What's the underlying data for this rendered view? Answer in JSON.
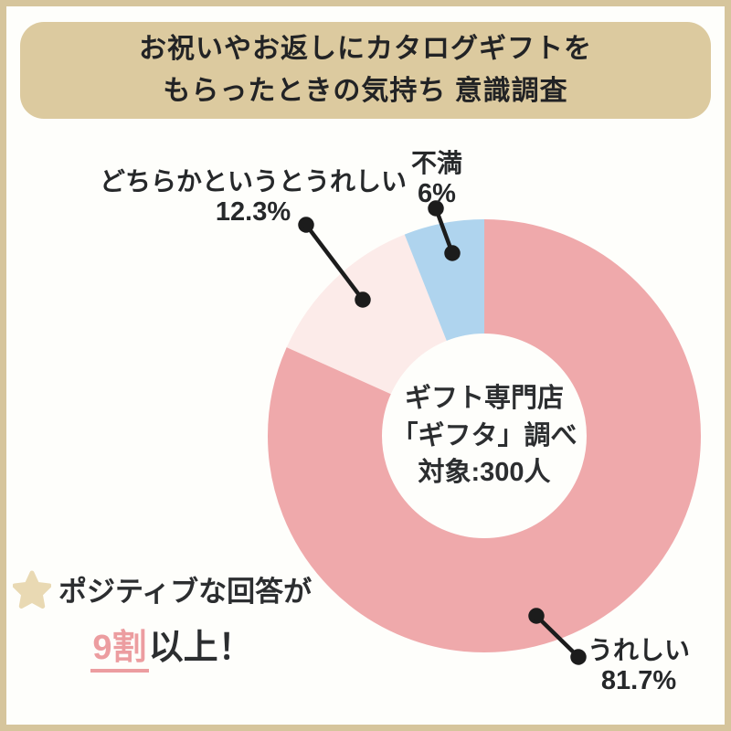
{
  "title": {
    "line1": "お祝いやお返しにカタログギフトを",
    "line2": "もらったときの気持ち 意識調査",
    "bg_color": "#dcca9f",
    "text_color": "#222325"
  },
  "frame": {
    "border_color": "#d6c59c",
    "background_color": "#fefefb"
  },
  "chart_data": {
    "type": "pie",
    "donut": true,
    "title": "お祝いやお返しにカタログギフトをもらったときの気持ち 意識調査",
    "start_angle_deg_from_top": 0,
    "direction": "clockwise",
    "segments": [
      {
        "label": "うれしい",
        "value": 81.7,
        "display": "81.7%",
        "color": "#efa9ab"
      },
      {
        "label": "どちらかというとうれしい",
        "value": 12.3,
        "display": "12.3%",
        "color": "#fcebe9"
      },
      {
        "label": "不満",
        "value": 6,
        "display": "6%",
        "color": "#afd4ee"
      }
    ],
    "center_label": {
      "line1": "ギフト専門店",
      "line2": "「ギフタ」調べ",
      "line3": "対象:300人"
    },
    "leader_line_color": "#1c1c1c"
  },
  "note": {
    "line1": "ポジティブな回答が",
    "highlight": "9割",
    "suffix": "以上！",
    "highlight_color": "#ec9da0",
    "star_color": "#e9d9b3"
  }
}
